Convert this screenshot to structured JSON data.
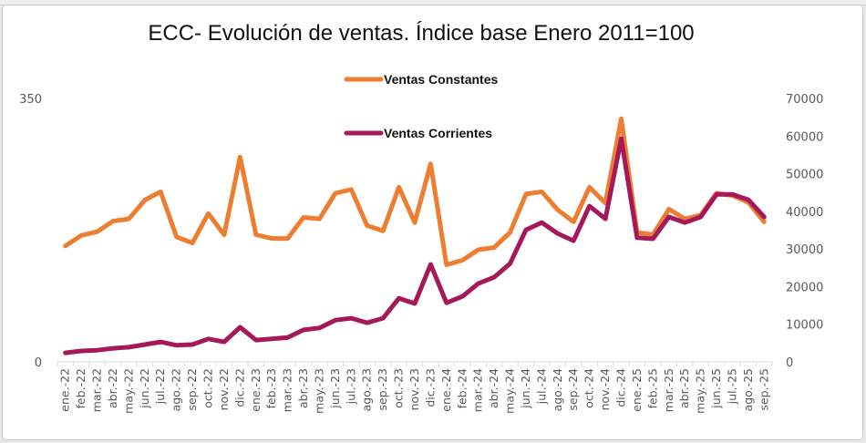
{
  "chart_data": {
    "type": "line",
    "title": "ECC- Evolución de ventas. Índice base Enero 2011=100",
    "xlabel": "",
    "ylabel": "",
    "y_left": {
      "min": 0,
      "max": 350,
      "tick_labels": [
        "350",
        "0"
      ]
    },
    "y_right": {
      "min": 0,
      "max": 70000,
      "tick_labels": [
        "70000",
        "60000",
        "50000",
        "40000",
        "30000",
        "20000",
        "10000",
        "0"
      ]
    },
    "grid": false,
    "legend_position": "top-center",
    "categories": [
      "ene.-22",
      "feb.-22",
      "mar.-22",
      "abr.-22",
      "may.-22",
      "jun.-22",
      "jul.-22",
      "ago.-22",
      "sep.-22",
      "oct.-22",
      "nov.-22",
      "dic.-22",
      "ene.-23",
      "feb.-23",
      "mar.-23",
      "abr.-23",
      "may.-23",
      "jun.-23",
      "jul.-23",
      "ago.-23",
      "sep.-23",
      "oct.-23",
      "nov.-23",
      "dic.-23",
      "ene.-24",
      "feb.-24",
      "mar.-24",
      "abr.-24",
      "may.-24",
      "jun.-24",
      "jul.-24",
      "ago.-24",
      "sep.-24",
      "oct.-24",
      "nov.-24",
      "dic.-24",
      "ene.-25",
      "feb.-25",
      "mar.-25",
      "abr.-25",
      "may.-25",
      "jun.-25",
      "jul.-25",
      "ago.-25",
      "sep.-25"
    ],
    "series": [
      {
        "name": "Ventas Constantes",
        "axis": "left",
        "color": "#ED7D31",
        "values": [
          154,
          168,
          173,
          187,
          190,
          215,
          226,
          166,
          158,
          197,
          169,
          272,
          169,
          164,
          164,
          192,
          190,
          224,
          229,
          181,
          174,
          232,
          185,
          263,
          129,
          135,
          149,
          152,
          172,
          223,
          226,
          202,
          186,
          232,
          211,
          323,
          172,
          169,
          203,
          190,
          195,
          224,
          221,
          212,
          186
        ]
      },
      {
        "name": "Ventas Corrientes",
        "axis": "right",
        "color": "#A5195A",
        "values": [
          2400,
          2900,
          3100,
          3600,
          3900,
          4600,
          5300,
          4400,
          4600,
          6100,
          5300,
          9200,
          5800,
          6100,
          6500,
          8500,
          9000,
          11100,
          11600,
          10400,
          11600,
          16900,
          15500,
          25900,
          15700,
          17400,
          20800,
          22500,
          26100,
          35100,
          37000,
          34100,
          32200,
          41400,
          38000,
          59300,
          33000,
          32700,
          38500,
          37000,
          38500,
          44500,
          44500,
          43100,
          38500
        ]
      }
    ]
  },
  "chart": {
    "legend": [
      {
        "label": "Ventas Constantes",
        "color": "#ED7D31"
      },
      {
        "label": "Ventas Corrientes",
        "color": "#A5195A"
      }
    ]
  }
}
